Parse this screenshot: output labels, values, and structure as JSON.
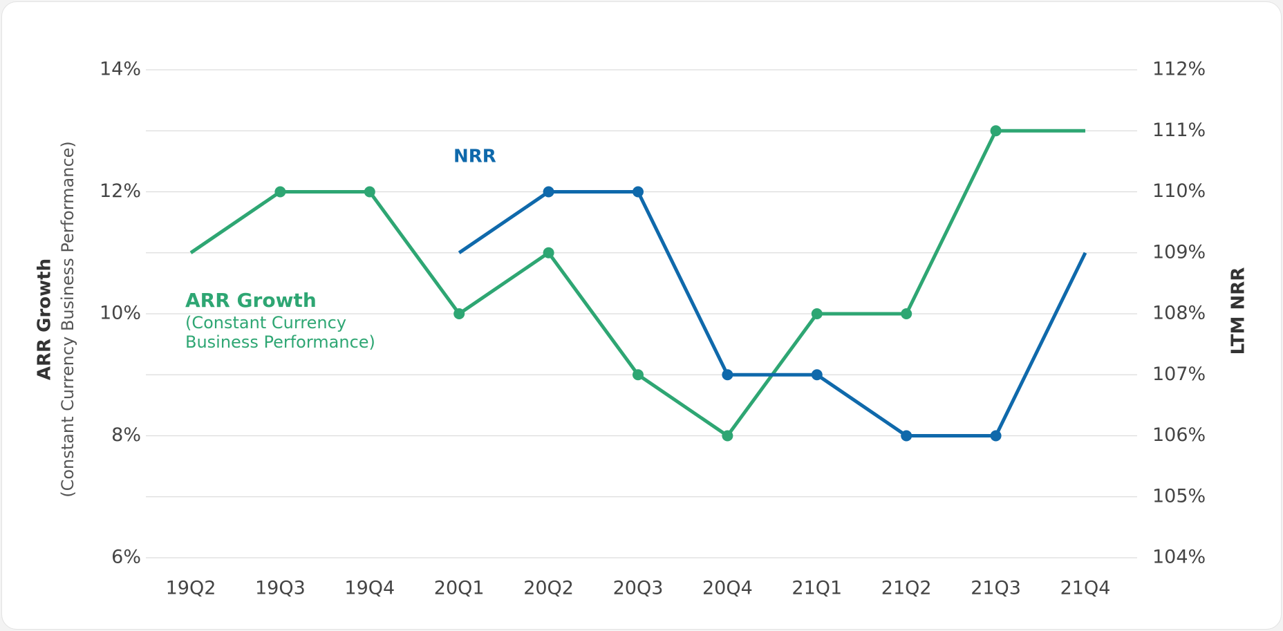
{
  "chart_data": {
    "type": "line",
    "categories": [
      "19Q2",
      "19Q3",
      "19Q4",
      "20Q1",
      "20Q2",
      "20Q3",
      "20Q4",
      "21Q1",
      "21Q2",
      "21Q3",
      "21Q4"
    ],
    "series": [
      {
        "name": "ARR Growth",
        "color": "#2ea673",
        "values": [
          11,
          12,
          12,
          10,
          11,
          9,
          8,
          10,
          10,
          13,
          13
        ]
      },
      {
        "name": "NRR",
        "color": "#0f69ab",
        "axis": "y2",
        "values": [
          null,
          null,
          null,
          109,
          110,
          110,
          107,
          107,
          106,
          106,
          109
        ]
      }
    ],
    "annotations": [
      "(Constant Currency",
      "Business Performance)"
    ],
    "y_label": "ARR Growth",
    "y_label_sub": "(Constant Currency Business Performance)",
    "y2_label": "LTM NRR",
    "ylim": [
      6,
      14
    ],
    "yticks": [
      {
        "value": 6,
        "label": "6%"
      },
      {
        "value": 8,
        "label": "8%"
      },
      {
        "value": 10,
        "label": "10%"
      },
      {
        "value": 12,
        "label": "12%"
      },
      {
        "value": 14,
        "label": "14%"
      }
    ],
    "y2lim": [
      104,
      112
    ],
    "y2ticks": [
      {
        "value": 104,
        "label": "104%"
      },
      {
        "value": 105,
        "label": "105%"
      },
      {
        "value": 106,
        "label": "106%"
      },
      {
        "value": 107,
        "label": "107%"
      },
      {
        "value": 108,
        "label": "108%"
      },
      {
        "value": 109,
        "label": "109%"
      },
      {
        "value": 110,
        "label": "110%"
      },
      {
        "value": 111,
        "label": "111%"
      },
      {
        "value": 112,
        "label": "112%"
      }
    ],
    "grid": true
  }
}
